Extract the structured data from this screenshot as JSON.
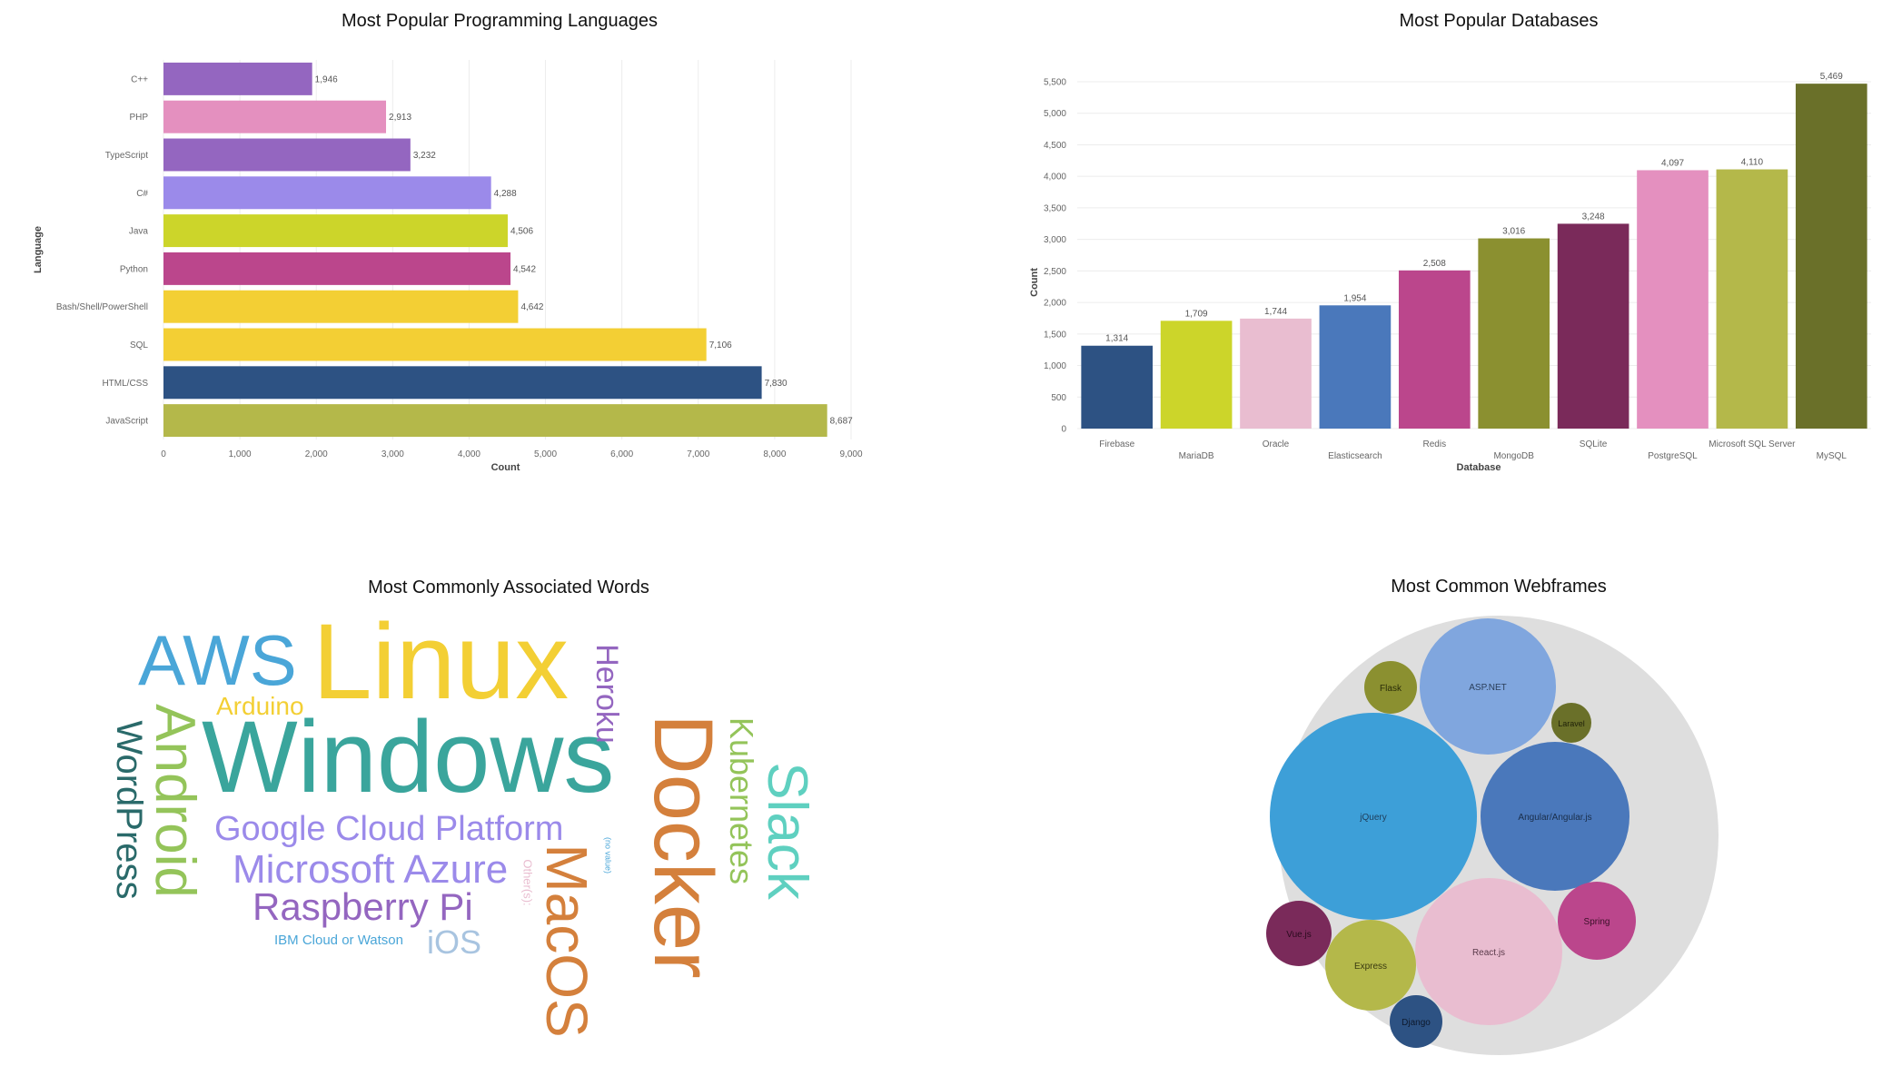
{
  "colors": {
    "purple": "#9466c0",
    "pink": "#e490bf",
    "lavender": "#9b8aea",
    "lime": "#ccd52a",
    "magenta": "#bb468c",
    "yellow": "#f3cf34",
    "navy": "#2d5283",
    "olive": "#b4b84a",
    "rose": "#e9bdd0",
    "blue": "#4a78bb",
    "olive_dark": "#8b9030",
    "wine": "#7a2a5a",
    "olive_deep": "#6a7029"
  },
  "chart_data": [
    {
      "type": "bar",
      "orientation": "horizontal",
      "title": "Most Popular Programming Languages",
      "xlabel": "Count",
      "ylabel": "Language",
      "xlim": [
        0,
        9000
      ],
      "x_ticks": [
        0,
        1000,
        2000,
        3000,
        4000,
        5000,
        6000,
        7000,
        8000,
        9000
      ],
      "x_tick_labels": [
        "0",
        "1,000",
        "2,000",
        "3,000",
        "4,000",
        "5,000",
        "6,000",
        "7,000",
        "8,000",
        "9,000"
      ],
      "grid": true,
      "categories": [
        "C++",
        "PHP",
        "TypeScript",
        "C#",
        "Java",
        "Python",
        "Bash/Shell/PowerShell",
        "SQL",
        "HTML/CSS",
        "JavaScript"
      ],
      "values": [
        1946,
        2913,
        3232,
        4288,
        4506,
        4542,
        4642,
        7106,
        7830,
        8687
      ],
      "value_labels": [
        "1,946",
        "2,913",
        "3,232",
        "4,288",
        "4,506",
        "4,542",
        "4,642",
        "7,106",
        "7,830",
        "8,687"
      ],
      "bar_colors": [
        "#9466c0",
        "#e490bf",
        "#9466c0",
        "#9b8aea",
        "#ccd52a",
        "#bb468c",
        "#f3cf34",
        "#f3cf34",
        "#2d5283",
        "#b4b84a"
      ]
    },
    {
      "type": "bar",
      "orientation": "vertical",
      "title": "Most Popular Databases",
      "xlabel": "Database",
      "ylabel": "Count",
      "ylim": [
        0,
        5500
      ],
      "y_ticks": [
        0,
        500,
        1000,
        1500,
        2000,
        2500,
        3000,
        3500,
        4000,
        4500,
        5000,
        5500
      ],
      "y_tick_labels": [
        "0",
        "500",
        "1,000",
        "1,500",
        "2,000",
        "2,500",
        "3,000",
        "3,500",
        "4,000",
        "4,500",
        "5,000",
        "5,500"
      ],
      "grid": true,
      "categories": [
        "Firebase",
        "MariaDB",
        "Oracle",
        "Elasticsearch",
        "Redis",
        "MongoDB",
        "SQLite",
        "PostgreSQL",
        "Microsoft SQL Server",
        "MySQL"
      ],
      "values": [
        1314,
        1709,
        1744,
        1954,
        2508,
        3016,
        3248,
        4097,
        4110,
        5469
      ],
      "value_labels": [
        "1,314",
        "1,709",
        "1,744",
        "1,954",
        "2,508",
        "3,016",
        "3,248",
        "4,097",
        "4,110",
        "5,469"
      ],
      "bar_colors": [
        "#2d5283",
        "#ccd52a",
        "#e9bdd0",
        "#4a78bb",
        "#bb468c",
        "#8b9030",
        "#7a2a5a",
        "#e490bf",
        "#b4b84a",
        "#6a7029"
      ]
    },
    {
      "type": "wordcloud",
      "title": "Most Commonly Associated Words",
      "words": [
        {
          "text": "Linux",
          "color": "#f3cf34"
        },
        {
          "text": "Windows",
          "color": "#3aa59c"
        },
        {
          "text": "Docker",
          "color": "#d4803c"
        },
        {
          "text": "AWS",
          "color": "#4aa6d8"
        },
        {
          "text": "Android",
          "color": "#94c45a"
        },
        {
          "text": "MacOS",
          "color": "#d4803c"
        },
        {
          "text": "Slack",
          "color": "#5fd0c0"
        },
        {
          "text": "Google Cloud Platform",
          "color": "#9b8aea"
        },
        {
          "text": "Microsoft Azure",
          "color": "#9b8aea"
        },
        {
          "text": "Raspberry Pi",
          "color": "#9466c0"
        },
        {
          "text": "WordPress",
          "color": "#2a6a6a"
        },
        {
          "text": "Kubernetes",
          "color": "#94c45a"
        },
        {
          "text": "Heroku",
          "color": "#9466c0"
        },
        {
          "text": "Arduino",
          "color": "#f3cf34"
        },
        {
          "text": "iOS",
          "color": "#a8c4e0"
        },
        {
          "text": "IBM Cloud or Watson",
          "color": "#4aa6d8"
        },
        {
          "text": "Other(s):",
          "color": "#e9bdd0"
        },
        {
          "text": "(no value)",
          "color": "#4aa6d8"
        }
      ]
    },
    {
      "type": "bubble",
      "title": "Most Common Webframes",
      "bubbles": [
        {
          "name": "jQuery",
          "color": "#3d9fd8"
        },
        {
          "name": "Angular/Angular.js",
          "color": "#4a78bb"
        },
        {
          "name": "React.js",
          "color": "#e9bdd0"
        },
        {
          "name": "ASP.NET",
          "color": "#80a6de"
        },
        {
          "name": "Express",
          "color": "#b4b84a"
        },
        {
          "name": "Spring",
          "color": "#bb468c"
        },
        {
          "name": "Vue.js",
          "color": "#7a2a5a"
        },
        {
          "name": "Flask",
          "color": "#8b9030"
        },
        {
          "name": "Django",
          "color": "#2d5283"
        },
        {
          "name": "Laravel",
          "color": "#6a7029"
        }
      ]
    }
  ]
}
